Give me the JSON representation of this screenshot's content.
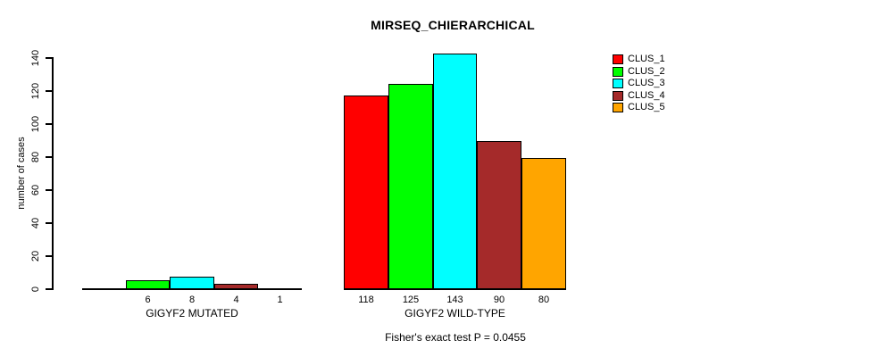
{
  "chart_data": {
    "type": "bar",
    "title": "MIRSEQ_CHIERARCHICAL",
    "ylabel": "number of cases",
    "xlabel": "",
    "ylim": [
      0,
      140
    ],
    "yticks": [
      0,
      20,
      40,
      60,
      80,
      100,
      120,
      140
    ],
    "grid": false,
    "legend_position": "top-right",
    "categories": [
      "GIGYF2 MUTATED",
      "GIGYF2 WILD-TYPE"
    ],
    "series": [
      {
        "name": "CLUS_1",
        "color": "#FF0000",
        "values": [
          0,
          118
        ]
      },
      {
        "name": "CLUS_2",
        "color": "#00FF00",
        "values": [
          6,
          125
        ]
      },
      {
        "name": "CLUS_3",
        "color": "#00FFFF",
        "values": [
          8,
          143
        ]
      },
      {
        "name": "CLUS_4",
        "color": "#A52A2A",
        "values": [
          4,
          90
        ]
      },
      {
        "name": "CLUS_5",
        "color": "#FFA500",
        "values": [
          1,
          80
        ]
      }
    ],
    "value_labels": [
      [
        "",
        "6",
        "8",
        "4",
        "1"
      ],
      [
        "118",
        "125",
        "143",
        "90",
        "80"
      ]
    ],
    "annotation": "Fisher's exact test P = 0.0455",
    "axis_color": "#000000",
    "bar_border_color": "#000000"
  }
}
